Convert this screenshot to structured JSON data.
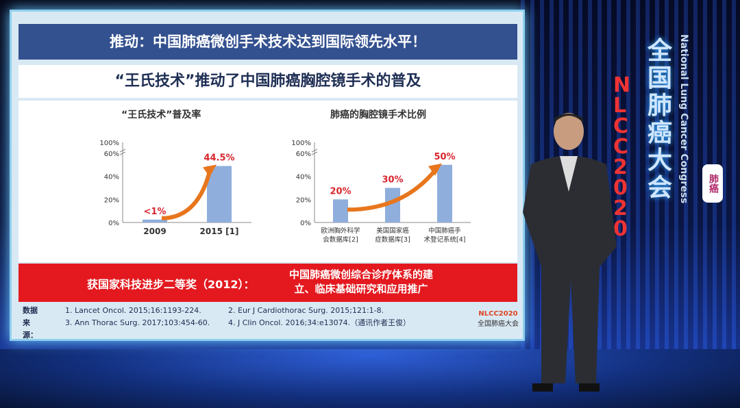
{
  "slide": {
    "banner": "推动：中国肺癌微创手术技术达到国际领先水平！",
    "subtitle": "“王氏技术”推动了中国肺癌胸腔镜手术的普及",
    "award_left": "获国家科技进步二等奖（2012）：",
    "award_right_1": "中国肺癌微创综合诊疗体系的建",
    "award_right_2": "立、临床基础研究和应用推广",
    "refs_label": "数据来源：",
    "refs": [
      "1. Lancet Oncol. 2015;16:1193-224.",
      "2. Eur J Cardiothorac Surg. 2015;121:1-8.",
      "3. Ann Thorac Surg. 2017;103:454-60.",
      "4. J Clin Oncol. 2016;34:e13074.（通讯作者王俊）"
    ],
    "logo_top": "NLCC2020",
    "logo_bottom": "全国肺癌大会"
  },
  "branding": {
    "cn": "全国肺癌大会",
    "code": "NLCC2020",
    "en": "National Lung Cancer Congress",
    "seal": "肺癌"
  },
  "colors": {
    "banner": "#33508f",
    "award": "#e3191f",
    "bar": "#8faedc",
    "label": "#d8262e",
    "arrow": "#e8761d"
  },
  "chart_data": [
    {
      "type": "bar",
      "title": "“王氏技术”普及率",
      "categories": [
        "2009",
        "2015"
      ],
      "category_refs": [
        "",
        "[1]"
      ],
      "values": [
        1,
        44.5
      ],
      "data_labels": [
        "<1%",
        "44.5%"
      ],
      "ylim": [
        0,
        100
      ],
      "yticks": [
        "0%",
        "20%",
        "40%",
        "60%",
        "100%"
      ],
      "axis_break": true
    },
    {
      "type": "bar",
      "title": "肺癌的胸腔镜手术比例",
      "categories": [
        "欧洲胸外科学会数据库",
        "美国国家癌症数据库",
        "中国肺癌手术登记系统"
      ],
      "category_lines": [
        [
          "欧洲胸外科学",
          "会数据库"
        ],
        [
          "美国国家癌",
          "症数据库"
        ],
        [
          "中国肺癌手",
          "术登记系统"
        ]
      ],
      "category_refs": [
        "[2]",
        "[3]",
        "[4]"
      ],
      "values": [
        20,
        30,
        50
      ],
      "data_labels": [
        "20%",
        "30%",
        "50%"
      ],
      "ylim": [
        0,
        100
      ],
      "yticks": [
        "0%",
        "20%",
        "40%",
        "60%",
        "100%"
      ],
      "axis_break": true
    }
  ]
}
